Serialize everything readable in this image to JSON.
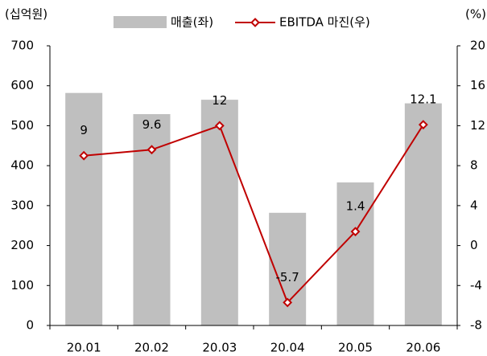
{
  "chart_data": {
    "type": "combo",
    "ylabel": "(십억원)",
    "y2label": "(%)",
    "categories": [
      "20.01",
      "20.02",
      "20.03",
      "20.04",
      "20.05",
      "20.06"
    ],
    "series": [
      {
        "name": "매출(좌)",
        "type": "bar",
        "color": "#bfbfbf",
        "values": [
          582,
          529,
          565,
          282,
          358,
          556
        ]
      },
      {
        "name": "EBITDA 마진(우)",
        "type": "line",
        "axis": "y2",
        "color": "#c00000",
        "values": [
          9,
          9.6,
          12,
          -5.7,
          1.4,
          12.1
        ]
      }
    ],
    "ylim": [
      0,
      700
    ],
    "yticks": [
      0,
      100,
      200,
      300,
      400,
      500,
      600,
      700
    ],
    "y2lim": [
      -8,
      20
    ],
    "y2ticks": [
      -8,
      -4,
      0,
      4,
      8,
      12,
      16,
      20
    ],
    "grid": false
  }
}
